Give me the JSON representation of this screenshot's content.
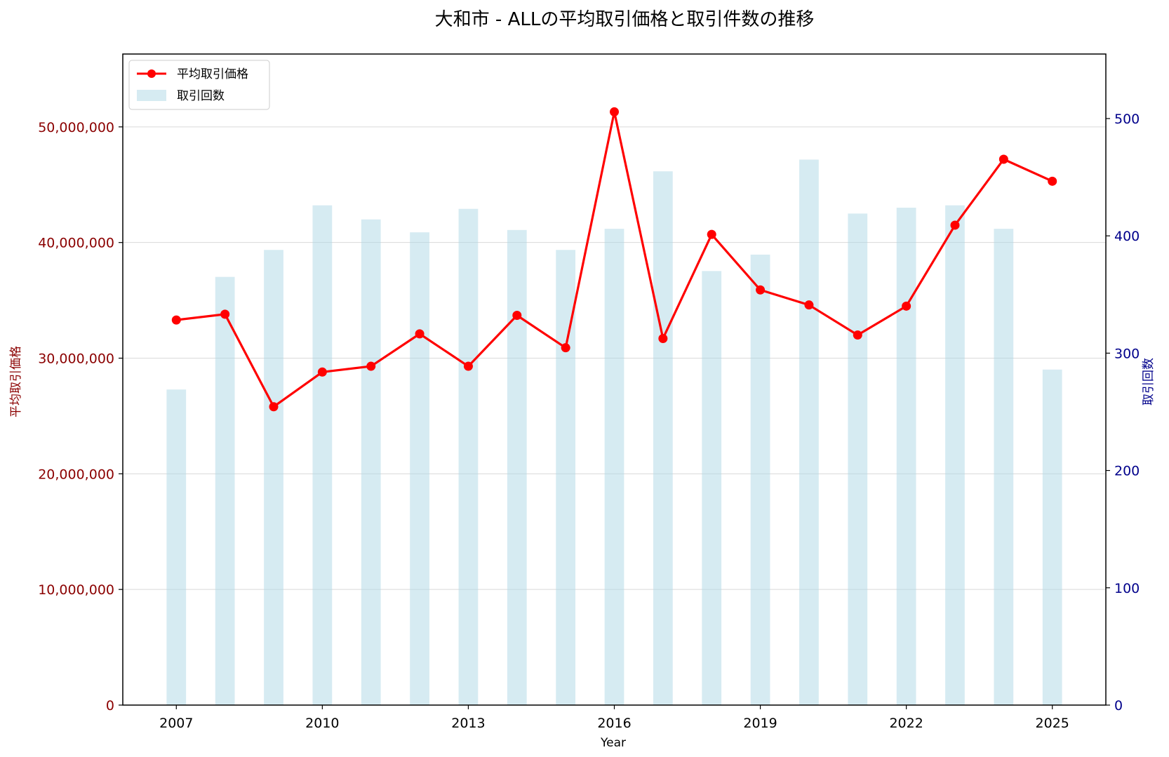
{
  "chart_data": {
    "type": "bar+line",
    "title": "大和市 - ALLの平均取引価格と取引件数の推移",
    "xlabel": "Year",
    "ylabel_left": "平均取引価格",
    "ylabel_right": "取引回数",
    "x": [
      2007,
      2008,
      2009,
      2010,
      2011,
      2012,
      2013,
      2014,
      2015,
      2016,
      2017,
      2018,
      2019,
      2020,
      2021,
      2022,
      2023,
      2024,
      2025
    ],
    "x_ticks": [
      "2007",
      "2010",
      "2013",
      "2016",
      "2019",
      "2022",
      "2025"
    ],
    "series": [
      {
        "name": "平均取引価格",
        "kind": "line",
        "axis": "left",
        "color": "#ff0000",
        "values": [
          33300000,
          33800000,
          25800000,
          28800000,
          29300000,
          32100000,
          29300000,
          33700000,
          30900000,
          51300000,
          31700000,
          40700000,
          35900000,
          34600000,
          32000000,
          34500000,
          41500000,
          47200000,
          45300000
        ]
      },
      {
        "name": "取引回数",
        "kind": "bar",
        "axis": "right",
        "color": "#add8e6",
        "values": [
          269,
          365,
          388,
          426,
          414,
          403,
          423,
          405,
          388,
          406,
          455,
          370,
          384,
          465,
          419,
          424,
          426,
          406,
          286
        ]
      }
    ],
    "y_left_ticks": [
      "0",
      "10,000,000",
      "20,000,000",
      "30,000,000",
      "40,000,000",
      "50,000,000"
    ],
    "y_right_ticks": [
      "0",
      "100",
      "200",
      "300",
      "400",
      "500"
    ],
    "ylim_left": [
      0,
      56300000
    ],
    "ylim_right": [
      0,
      555
    ],
    "xlim": [
      2005.9,
      2026.1
    ],
    "grid": "horizontal",
    "legend_position": "top-left",
    "left_axis_color": "#8b0000",
    "right_axis_color": "#00008b"
  }
}
